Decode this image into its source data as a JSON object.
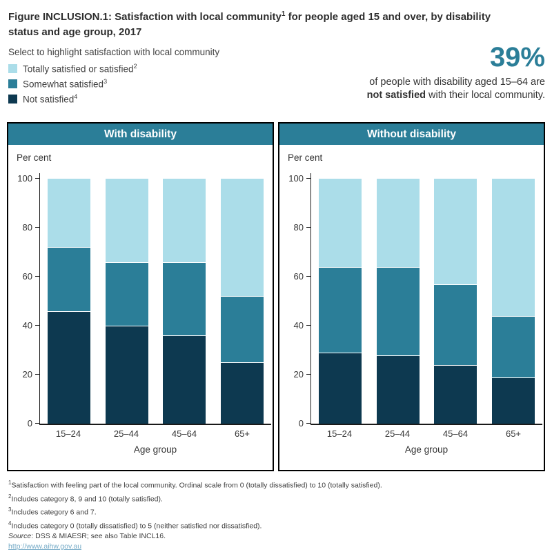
{
  "title": {
    "pre": "Figure INCLUSION.1: Satisfaction with local community",
    "sup": "1",
    "post": " for people aged 15 and over, by disability status and age group, 2017"
  },
  "legend": {
    "title": "Select to highlight satisfaction with local community",
    "items": [
      {
        "label": "Totally satisfied or satisfied",
        "sup": "2",
        "color": "#abdde9"
      },
      {
        "label": "Somewhat satisfied",
        "sup": "3",
        "color": "#2b7e98"
      },
      {
        "label": "Not satisfied",
        "sup": "4",
        "color": "#0d3950"
      }
    ]
  },
  "callout": {
    "value": "39%",
    "line1": "of people with disability aged 15–64 are",
    "line2_bold": "not satisfied",
    "line2_rest": " with their local community."
  },
  "chart_data": {
    "type": "bar",
    "stacked": true,
    "categories": [
      "15–24",
      "25–44",
      "45–64",
      "65+"
    ],
    "xlabel": "Age group",
    "ylabel": "Per cent",
    "ylim": [
      0,
      100
    ],
    "yticks": [
      0,
      20,
      40,
      60,
      80,
      100
    ],
    "grid": false,
    "legend_position": "top-left",
    "panels": [
      {
        "title": "With disability",
        "series": [
          {
            "name": "Not satisfied",
            "color": "#0d3950",
            "values": [
              46,
              40,
              36,
              25
            ]
          },
          {
            "name": "Somewhat satisfied",
            "color": "#2b7e98",
            "values": [
              26,
              26,
              30,
              27
            ]
          },
          {
            "name": "Totally satisfied or satisfied",
            "color": "#abdde9",
            "values": [
              28,
              34,
              34,
              48
            ]
          }
        ]
      },
      {
        "title": "Without disability",
        "series": [
          {
            "name": "Not satisfied",
            "color": "#0d3950",
            "values": [
              29,
              28,
              24,
              19
            ]
          },
          {
            "name": "Somewhat satisfied",
            "color": "#2b7e98",
            "values": [
              35,
              36,
              33,
              25
            ]
          },
          {
            "name": "Totally satisfied or satisfied",
            "color": "#abdde9",
            "values": [
              36,
              36,
              43,
              56
            ]
          }
        ]
      }
    ]
  },
  "footer": {
    "footnotes": [
      {
        "sup": "1",
        "text": "Satisfaction with feeling part of the local community. Ordinal scale from 0 (totally dissatisfied) to 10 (totally satisfied)."
      },
      {
        "sup": "2",
        "text": "Includes category 8, 9 and 10 (totally satisfied)."
      },
      {
        "sup": "3",
        "text": "Includes category 6 and 7."
      },
      {
        "sup": "4",
        "text": "Includes category 0 (totally dissatisfied) to 5 (neither satisfied nor dissatisfied)."
      }
    ],
    "source_label": "Source",
    "source_text": ": DSS & MIAESR; see also Table INCL16.",
    "link": "http://www.aihw.gov.au"
  }
}
